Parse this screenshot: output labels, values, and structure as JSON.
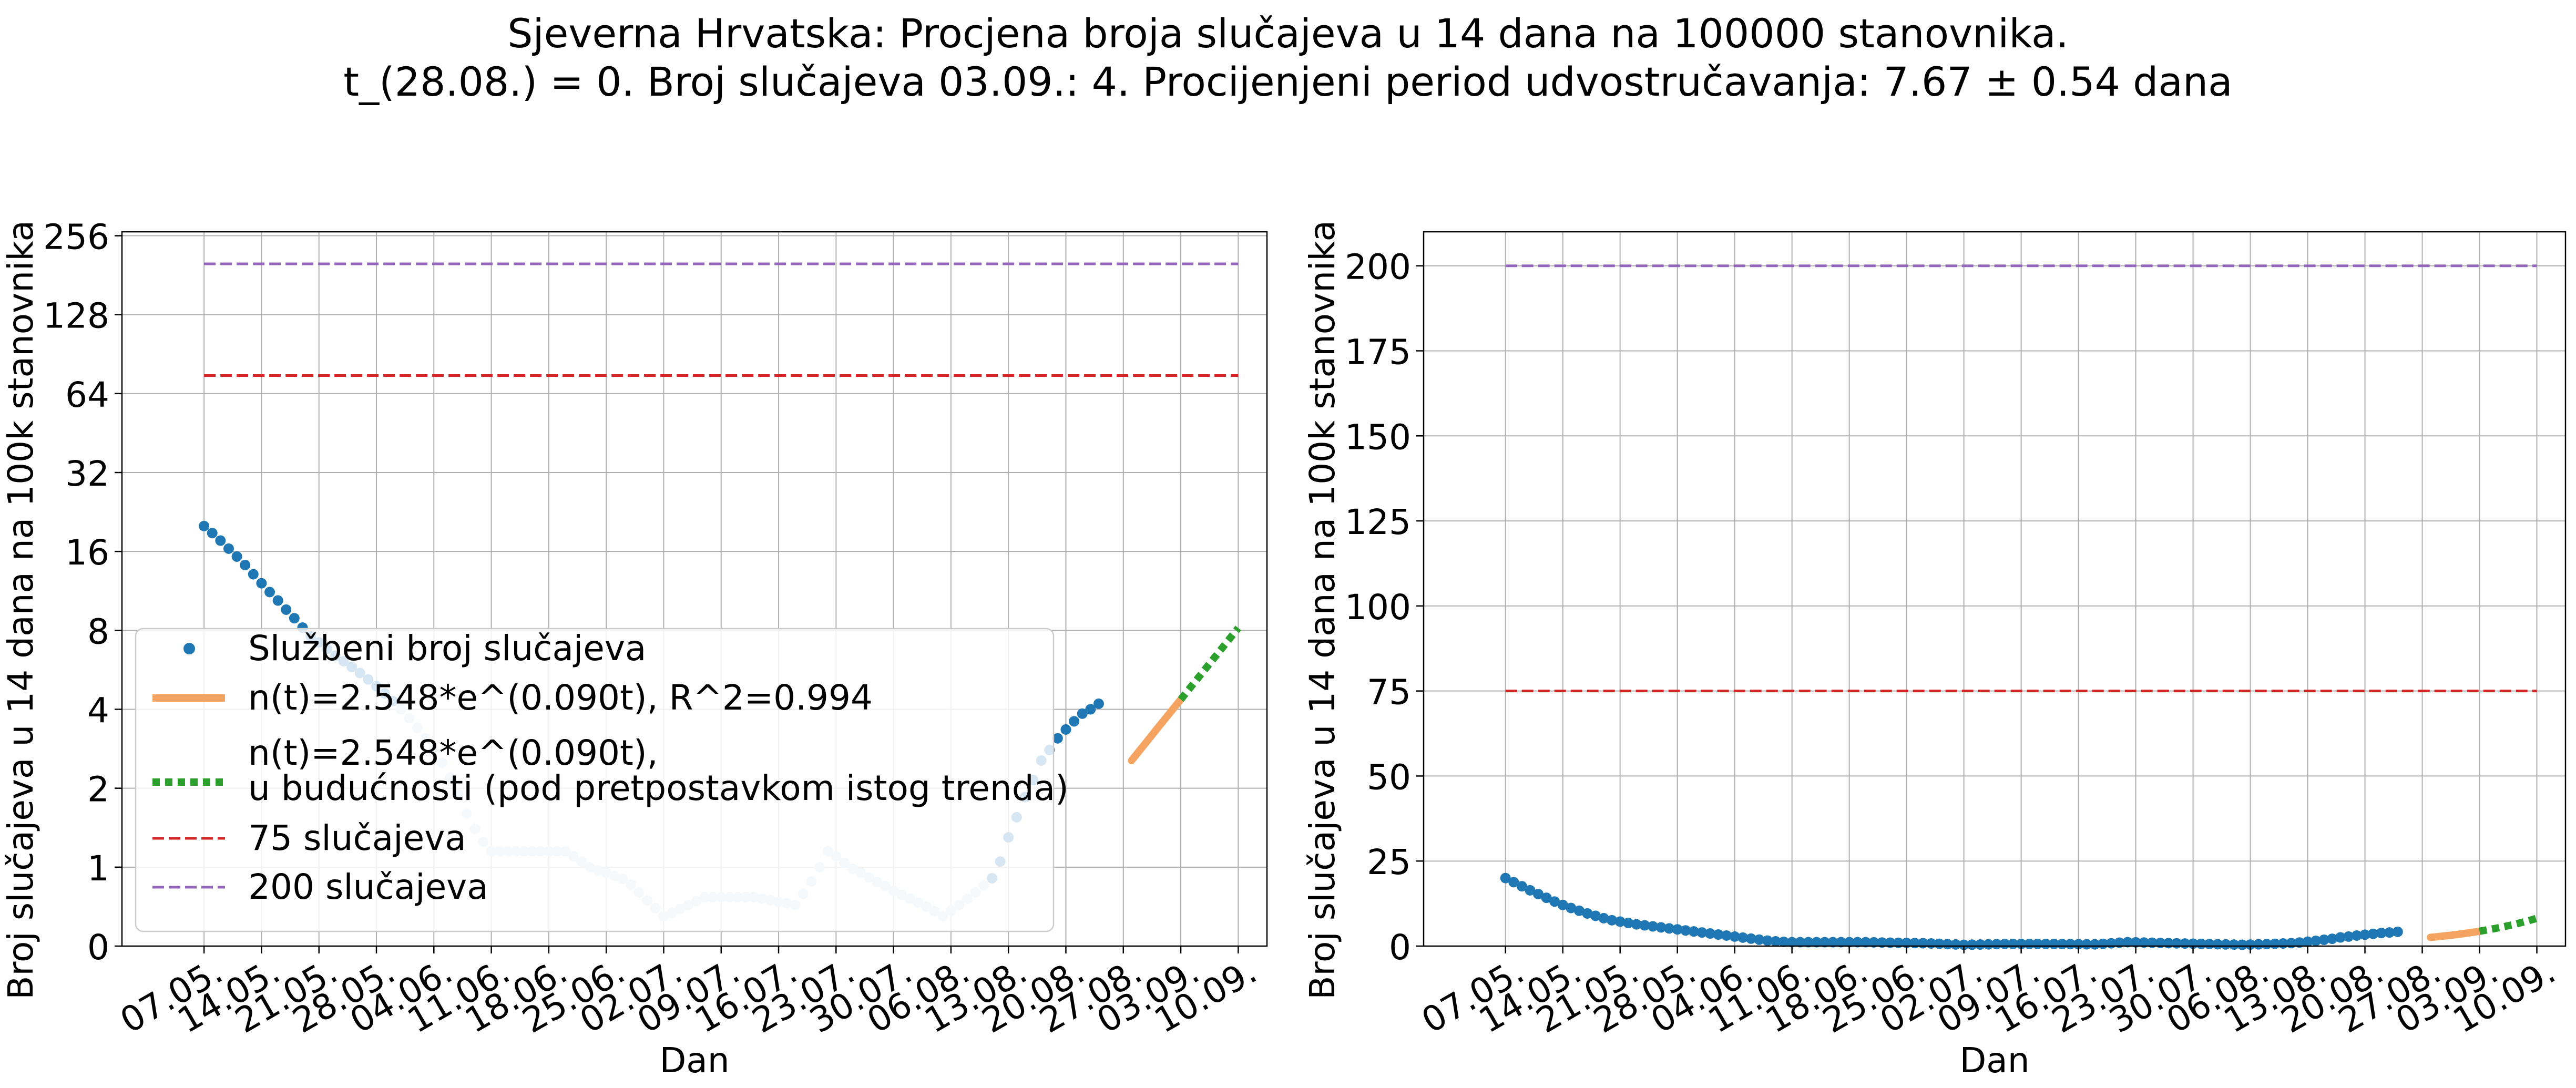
{
  "title_lines": [
    "Sjeverna Hrvatska: Procjena broja slučajeva u 14 dana na 100000 stanovnika.",
    "t_(28.08.) = 0. Broj slučajeva 03.09.: 4. Procijenjeni period udvostručavanja: 7.67 ± 0.54 dana"
  ],
  "chart_data": [
    {
      "type": "scatter",
      "y_scale": "symlog",
      "xlabel": "Dan",
      "ylabel": "Broj slučajeva u 14 dana na 100k stanovnika",
      "x_ticks": [
        "07.05.",
        "14.05.",
        "21.05.",
        "28.05.",
        "04.06.",
        "11.06.",
        "18.06.",
        "25.06.",
        "02.07.",
        "09.07.",
        "16.07.",
        "23.07.",
        "30.07.",
        "06.08.",
        "13.08.",
        "20.08.",
        "27.08.",
        "03.09.",
        "10.09."
      ],
      "y_ticks": [
        0,
        1,
        2,
        4,
        8,
        16,
        32,
        64,
        128,
        256
      ],
      "ylim": [
        0,
        256
      ],
      "grid": true,
      "legend": {
        "placement": "lower-left",
        "entries": [
          {
            "label": "Službeni broj slučajeva",
            "style": "marker",
            "color": "#1f77b4"
          },
          {
            "label": "n(t)=2.548*e^(0.090t), R^2=0.994",
            "style": "solid",
            "color": "#f4a460"
          },
          {
            "label": "n(t)=2.548*e^(0.090t),\nu budućnosti (pod pretpostavkom istog trenda)",
            "style": "dotted",
            "color": "#2ca02c"
          },
          {
            "label": "75 slučajeva",
            "style": "dashed",
            "color": "#d62728"
          },
          {
            "label": "200 slučajeva",
            "style": "dashed",
            "color": "#9467bd"
          }
        ]
      }
    },
    {
      "type": "scatter",
      "y_scale": "linear",
      "xlabel": "Dan",
      "ylabel": "Broj slučajeva u 14 dana na 100k stanovnika",
      "x_ticks": [
        "07.05.",
        "14.05.",
        "21.05.",
        "28.05.",
        "04.06.",
        "11.06.",
        "18.06.",
        "25.06.",
        "02.07.",
        "09.07.",
        "16.07.",
        "23.07.",
        "30.07.",
        "06.08.",
        "13.08.",
        "20.08.",
        "27.08.",
        "03.09.",
        "10.09."
      ],
      "y_ticks": [
        0,
        25,
        50,
        75,
        100,
        125,
        150,
        175,
        200
      ],
      "ylim": [
        0,
        210
      ],
      "grid": true
    }
  ],
  "series": {
    "x_start": "07.05.",
    "official_cases": [
      20,
      18.8,
      17.6,
      16.4,
      15.3,
      14.2,
      13.1,
      12.1,
      11.2,
      10.4,
      9.6,
      8.9,
      8.2,
      7.6,
      7.2,
      6.8,
      6.4,
      6.1,
      5.8,
      5.5,
      5.2,
      4.9,
      4.6,
      4.3,
      4.0,
      3.7,
      3.4,
      3.1,
      2.8,
      2.5,
      2.2,
      1.9,
      1.6,
      1.4,
      1.25,
      1.15,
      1.15,
      1.15,
      1.15,
      1.15,
      1.15,
      1.15,
      1.15,
      1.15,
      1.15,
      1.1,
      1.05,
      1.0,
      0.96,
      0.93,
      0.89,
      0.85,
      0.78,
      0.68,
      0.58,
      0.48,
      0.38,
      0.42,
      0.47,
      0.52,
      0.57,
      0.62,
      0.62,
      0.62,
      0.62,
      0.62,
      0.62,
      0.62,
      0.6,
      0.58,
      0.56,
      0.54,
      0.52,
      0.66,
      0.82,
      1.0,
      1.15,
      1.1,
      1.04,
      0.98,
      0.93,
      0.87,
      0.81,
      0.76,
      0.7,
      0.65,
      0.6,
      0.55,
      0.5,
      0.44,
      0.38,
      0.45,
      0.52,
      0.6,
      0.68,
      0.77,
      0.86,
      1.05,
      1.3,
      1.55,
      1.85,
      2.15,
      2.55,
      2.8,
      3.1,
      3.35,
      3.6,
      3.85,
      4.0,
      4.2
    ],
    "fit_past": [
      {
        "x": "28.08.",
        "y": 2.55
      },
      {
        "x": "29.08.",
        "y": 2.79
      },
      {
        "x": "30.08.",
        "y": 3.05
      },
      {
        "x": "31.08.",
        "y": 3.34
      },
      {
        "x": "01.09.",
        "y": 3.65
      },
      {
        "x": "02.09.",
        "y": 3.99
      },
      {
        "x": "03.09.",
        "y": 4.36
      }
    ],
    "fit_future": [
      {
        "x": "03.09.",
        "y": 4.36
      },
      {
        "x": "05.09.",
        "y": 5.22
      },
      {
        "x": "07.09.",
        "y": 6.24
      },
      {
        "x": "09.09.",
        "y": 7.47
      },
      {
        "x": "10.09.",
        "y": 8.17
      }
    ],
    "threshold_75": 75,
    "threshold_200": 200
  },
  "colors": {
    "official_dark": "#1f77b4",
    "official_light": "#c6dbef",
    "fit_past": "#f4a460",
    "fit_future": "#2ca02c",
    "line_75": "#d62728",
    "line_200": "#9467bd",
    "grid": "#b0b0b0"
  }
}
